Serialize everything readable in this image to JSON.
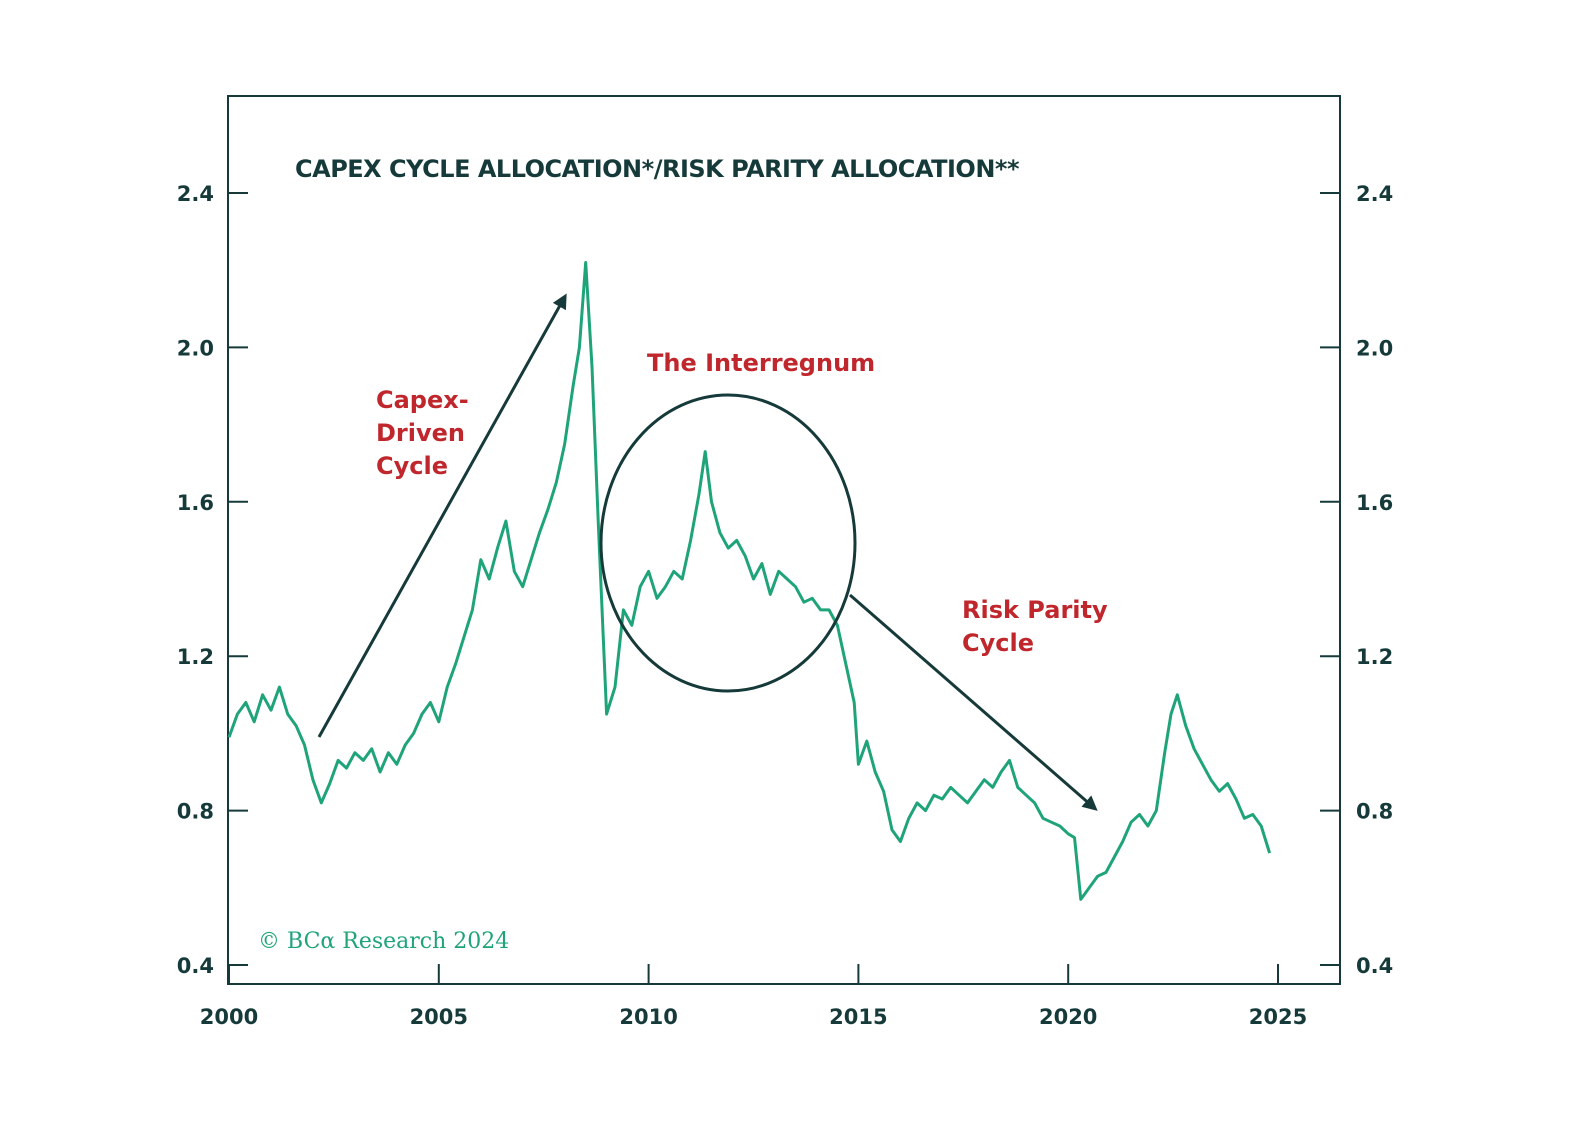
{
  "chart_data": {
    "type": "line",
    "title": "CAPEX CYCLE ALLOCATION*/RISK PARITY ALLOCATION**",
    "xlabel": "",
    "ylabel": "",
    "xlim": [
      2000,
      2025.5
    ],
    "ylim": [
      0.36,
      2.65
    ],
    "x_ticks": [
      2000,
      2005,
      2010,
      2015,
      2020,
      2025
    ],
    "x_tick_labels": [
      "2000",
      "2005",
      "2010",
      "2015",
      "2020",
      "2025"
    ],
    "y_ticks": [
      0.4,
      0.8,
      1.2,
      1.6,
      2.0,
      2.4
    ],
    "y_tick_labels": [
      "0.4",
      "0.8",
      "1.2",
      "1.6",
      "2.0",
      "2.4"
    ],
    "dual_y_axis": true,
    "grid": false,
    "line_color": "#1fa47a",
    "axis_color": "#163a3a",
    "annotation_color": "#c0272d",
    "series": [
      {
        "name": "",
        "x": [
          2000.0,
          2000.2,
          2000.4,
          2000.6,
          2000.8,
          2001.0,
          2001.2,
          2001.4,
          2001.6,
          2001.8,
          2002.0,
          2002.2,
          2002.4,
          2002.6,
          2002.8,
          2003.0,
          2003.2,
          2003.4,
          2003.6,
          2003.8,
          2004.0,
          2004.2,
          2004.4,
          2004.6,
          2004.8,
          2005.0,
          2005.2,
          2005.4,
          2005.6,
          2005.8,
          2006.0,
          2006.2,
          2006.4,
          2006.6,
          2006.8,
          2007.0,
          2007.2,
          2007.4,
          2007.6,
          2007.8,
          2008.0,
          2008.2,
          2008.35,
          2008.5,
          2008.65,
          2008.8,
          2009.0,
          2009.2,
          2009.4,
          2009.6,
          2009.8,
          2010.0,
          2010.2,
          2010.4,
          2010.6,
          2010.8,
          2011.0,
          2011.2,
          2011.35,
          2011.5,
          2011.7,
          2011.9,
          2012.1,
          2012.3,
          2012.5,
          2012.7,
          2012.9,
          2013.1,
          2013.3,
          2013.5,
          2013.7,
          2013.9,
          2014.1,
          2014.3,
          2014.5,
          2014.7,
          2014.9,
          2015.0,
          2015.2,
          2015.4,
          2015.6,
          2015.8,
          2016.0,
          2016.2,
          2016.4,
          2016.6,
          2016.8,
          2017.0,
          2017.2,
          2017.4,
          2017.6,
          2017.8,
          2018.0,
          2018.2,
          2018.4,
          2018.6,
          2018.8,
          2019.0,
          2019.2,
          2019.4,
          2019.6,
          2019.8,
          2020.0,
          2020.15,
          2020.3,
          2020.5,
          2020.7,
          2020.9,
          2021.1,
          2021.3,
          2021.5,
          2021.7,
          2021.9,
          2022.1,
          2022.3,
          2022.45,
          2022.6,
          2022.8,
          2023.0,
          2023.2,
          2023.4,
          2023.6,
          2023.8,
          2024.0,
          2024.2,
          2024.4,
          2024.6,
          2024.8
        ],
        "values": [
          0.99,
          1.05,
          1.08,
          1.03,
          1.1,
          1.06,
          1.12,
          1.05,
          1.02,
          0.97,
          0.88,
          0.82,
          0.87,
          0.93,
          0.91,
          0.95,
          0.93,
          0.96,
          0.9,
          0.95,
          0.92,
          0.97,
          1.0,
          1.05,
          1.08,
          1.03,
          1.12,
          1.18,
          1.25,
          1.32,
          1.45,
          1.4,
          1.48,
          1.55,
          1.42,
          1.38,
          1.45,
          1.52,
          1.58,
          1.65,
          1.75,
          1.9,
          2.0,
          2.22,
          1.95,
          1.55,
          1.05,
          1.12,
          1.32,
          1.28,
          1.38,
          1.42,
          1.35,
          1.38,
          1.42,
          1.4,
          1.5,
          1.62,
          1.73,
          1.6,
          1.52,
          1.48,
          1.5,
          1.46,
          1.4,
          1.44,
          1.36,
          1.42,
          1.4,
          1.38,
          1.34,
          1.35,
          1.32,
          1.32,
          1.28,
          1.18,
          1.08,
          0.92,
          0.98,
          0.9,
          0.85,
          0.75,
          0.72,
          0.78,
          0.82,
          0.8,
          0.84,
          0.83,
          0.86,
          0.84,
          0.82,
          0.85,
          0.88,
          0.86,
          0.9,
          0.93,
          0.86,
          0.84,
          0.82,
          0.78,
          0.77,
          0.76,
          0.74,
          0.73,
          0.57,
          0.6,
          0.63,
          0.64,
          0.68,
          0.72,
          0.77,
          0.79,
          0.76,
          0.8,
          0.95,
          1.05,
          1.1,
          1.02,
          0.96,
          0.92,
          0.88,
          0.85,
          0.87,
          0.83,
          0.78,
          0.79,
          0.76,
          0.69
        ]
      }
    ],
    "annotations": [
      {
        "text_lines": [
          "Capex-",
          "Driven",
          "Cycle"
        ]
      },
      {
        "text_lines": [
          "The Interregnum"
        ]
      },
      {
        "text_lines": [
          "Risk Parity",
          "Cycle"
        ]
      }
    ],
    "credit": "© BCα Research 2024"
  }
}
